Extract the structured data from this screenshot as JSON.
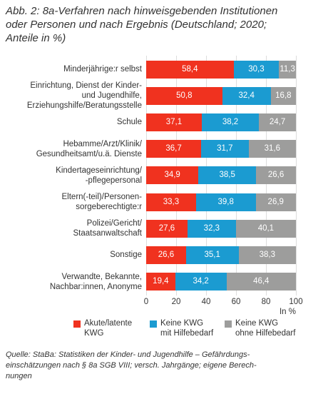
{
  "chart_data": {
    "type": "stacked-bar-horizontal",
    "title": "Abb. 2: 8a-Verfahren nach hinweisgebenden Institutionen\noder Personen und nach Ergebnis (Deutschland; 2020;\nAnteile in %)",
    "categories": [
      "Minderjährige:r selbst",
      "Einrichtung, Dienst der Kinder-\nund Jugendhilfe,\nErziehungshilfe/Beratungsstelle",
      "Schule",
      "Hebamme/Arzt/Klinik/\nGesundheitsamt/u.ä. Dienste",
      "Kindertageseinrichtung/\n-pflegepersonal",
      "Eltern(-teil)/Personen-\nsorgeberechtigte:r",
      "Polizei/Gericht/\nStaatsanwaltschaft",
      "Sonstige",
      "Verwandte, Bekannte,\nNachbar:innen, Anonyme"
    ],
    "series": [
      {
        "name": "Akute/latente\nKWG",
        "color": "#f0321f",
        "values": [
          58.4,
          50.8,
          37.1,
          36.7,
          34.9,
          33.3,
          27.6,
          26.6,
          19.4
        ],
        "value_labels": [
          "58,4",
          "50,8",
          "37,1",
          "36,7",
          "34,9",
          "33,3",
          "27,6",
          "26,6",
          "19,4"
        ]
      },
      {
        "name": "Keine KWG\nmit Hilfebedarf",
        "color": "#1b9bd1",
        "values": [
          30.3,
          32.4,
          38.2,
          31.7,
          38.5,
          39.8,
          32.3,
          35.1,
          34.2
        ],
        "value_labels": [
          "30,3",
          "32,4",
          "38,2",
          "31,7",
          "38,5",
          "39,8",
          "32,3",
          "35,1",
          "34,2"
        ]
      },
      {
        "name": "Keine KWG\nohne Hilfebedarf",
        "color": "#9d9d9c",
        "values": [
          11.3,
          16.8,
          24.7,
          31.6,
          26.6,
          26.9,
          40.1,
          38.3,
          46.4
        ],
        "value_labels": [
          "11,3",
          "16,8",
          "24,7",
          "31,6",
          "26,6",
          "26,9",
          "40,1",
          "38,3",
          "46,4"
        ]
      }
    ],
    "xlim": [
      0,
      100
    ],
    "xticks": [
      0,
      20,
      40,
      60,
      80,
      100
    ],
    "xlabel": "In %",
    "grid": true,
    "source": "Quelle: StaBa: Statistiken der Kinder- und Jugendhilfe – Gefährdungs-\neinschätzungen nach § 8a SGB VIII; versch. Jahrgänge; eigene Berech-\nnungen"
  }
}
